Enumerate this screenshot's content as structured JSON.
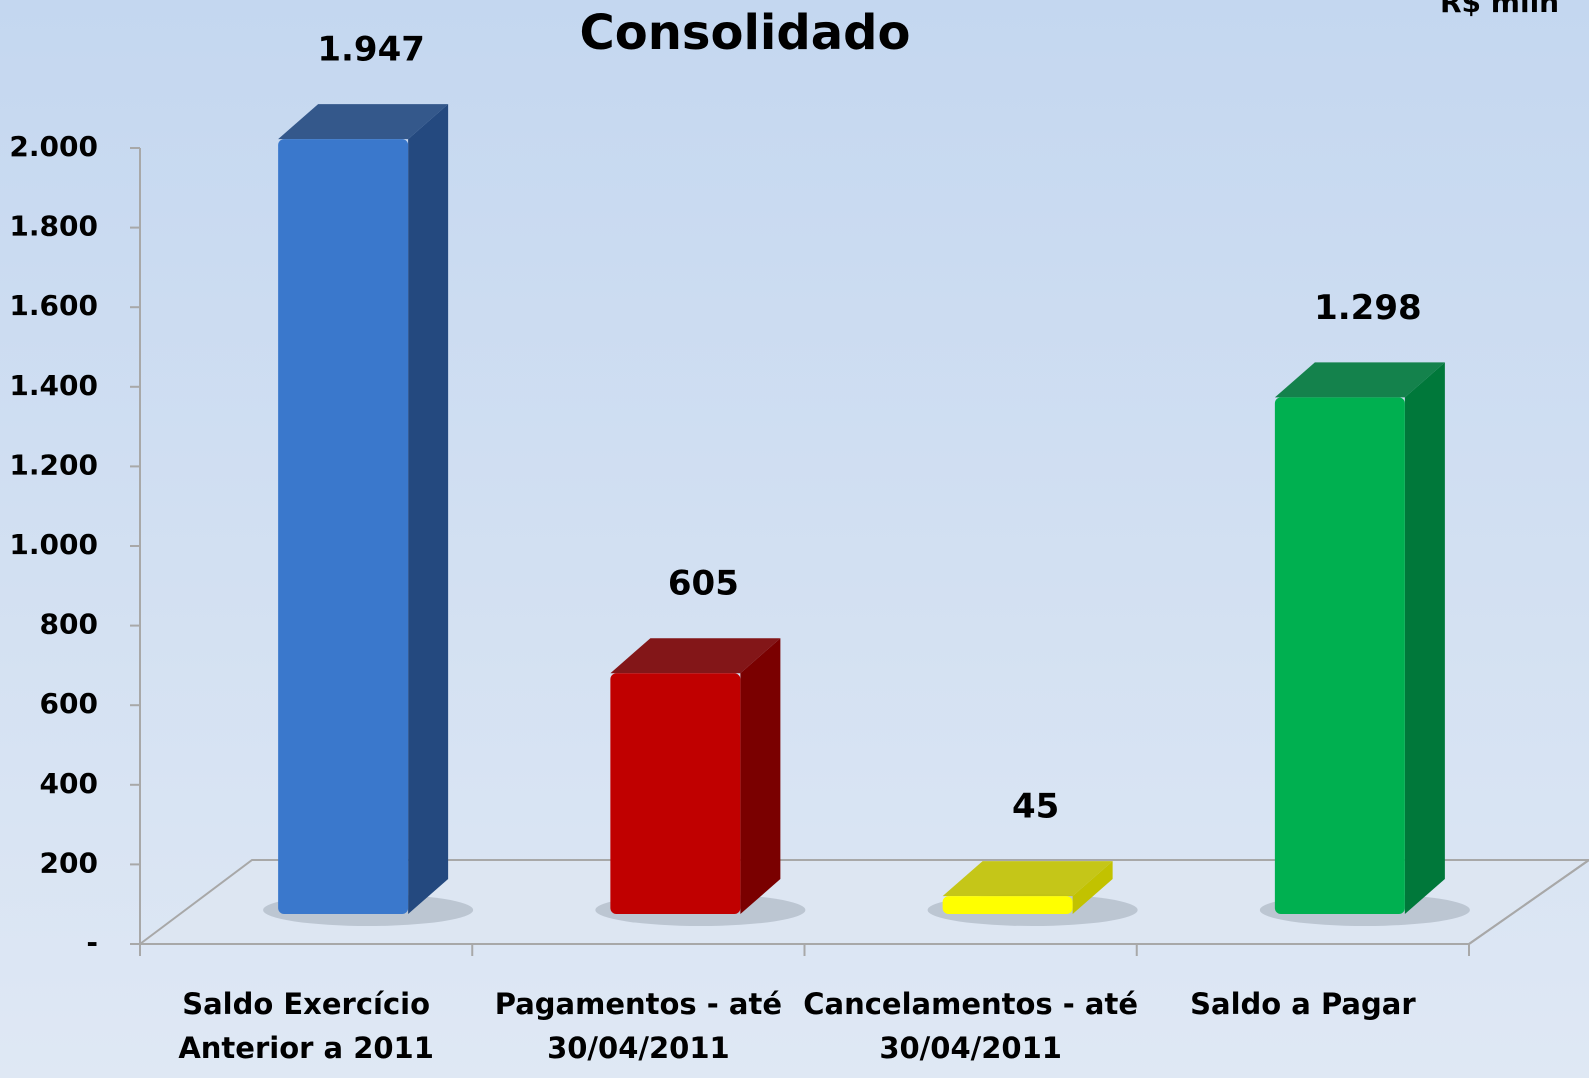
{
  "chart_data": {
    "type": "bar3d",
    "title": "Consolidado",
    "subtitle": "R$ milh",
    "categories": [
      [
        "Saldo Exercício",
        "Anterior a 2011"
      ],
      [
        "Pagamentos - até",
        "30/04/2011"
      ],
      [
        "Cancelamentos - até",
        "30/04/2011"
      ],
      [
        "Saldo a Pagar"
      ]
    ],
    "values": [
      1947,
      605,
      45,
      1298
    ],
    "value_labels": [
      "1.947",
      "605",
      "45",
      "1.298"
    ],
    "colors": [
      "#3a78cc",
      "#c00000",
      "#ffff00",
      "#00b050"
    ],
    "side_colors": [
      "#24497f",
      "#7a0000",
      "#c2c200",
      "#00783a"
    ],
    "ylim": [
      0,
      2000
    ],
    "yticks": [
      {
        "value": 0,
        "label": "-"
      },
      200,
      400,
      600,
      800,
      {
        "value": 1000,
        "label": "1.000"
      },
      {
        "value": 1200,
        "label": "1.200"
      },
      {
        "value": 1400,
        "label": "1.400"
      },
      {
        "value": 1600,
        "label": "1.600"
      },
      {
        "value": 1800,
        "label": "1.800"
      },
      {
        "value": 2000,
        "label": "2.000"
      }
    ]
  }
}
